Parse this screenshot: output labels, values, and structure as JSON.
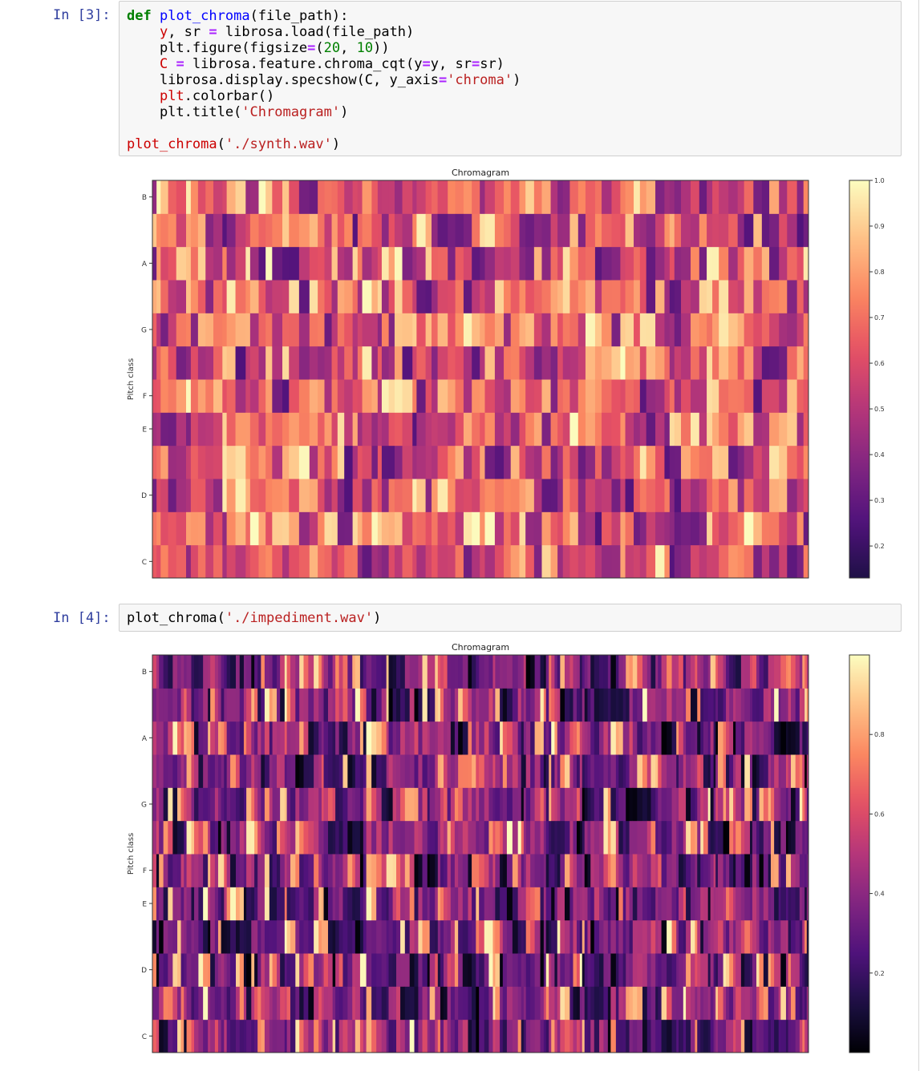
{
  "cells": [
    {
      "prompt": "In [3]:",
      "code_lines": [
        [
          {
            "t": "def",
            "c": "kw"
          },
          {
            "t": " ",
            "c": "nm"
          },
          {
            "t": "plot_chroma",
            "c": "fn"
          },
          {
            "t": "(file_path):",
            "c": "nm"
          }
        ],
        [
          {
            "t": "    ",
            "c": "nm"
          },
          {
            "t": "y",
            "c": "red"
          },
          {
            "t": ", sr ",
            "c": "nm"
          },
          {
            "t": "=",
            "c": "op"
          },
          {
            "t": " librosa.load(file_path)",
            "c": "nm"
          }
        ],
        [
          {
            "t": "    plt.figure(figsize",
            "c": "nm"
          },
          {
            "t": "=",
            "c": "op"
          },
          {
            "t": "(",
            "c": "nm"
          },
          {
            "t": "20",
            "c": "num"
          },
          {
            "t": ", ",
            "c": "nm"
          },
          {
            "t": "10",
            "c": "num"
          },
          {
            "t": "))",
            "c": "nm"
          }
        ],
        [
          {
            "t": "    ",
            "c": "nm"
          },
          {
            "t": "C",
            "c": "red"
          },
          {
            "t": " ",
            "c": "nm"
          },
          {
            "t": "=",
            "c": "op"
          },
          {
            "t": " librosa.feature.chroma_cqt(y",
            "c": "nm"
          },
          {
            "t": "=",
            "c": "op"
          },
          {
            "t": "y, sr",
            "c": "nm"
          },
          {
            "t": "=",
            "c": "op"
          },
          {
            "t": "sr)",
            "c": "nm"
          }
        ],
        [
          {
            "t": "    librosa.display.specshow(C, y_axis",
            "c": "nm"
          },
          {
            "t": "=",
            "c": "op"
          },
          {
            "t": "'chroma'",
            "c": "str"
          },
          {
            "t": ")",
            "c": "nm"
          }
        ],
        [
          {
            "t": "    ",
            "c": "nm"
          },
          {
            "t": "plt",
            "c": "red"
          },
          {
            "t": ".colorbar()",
            "c": "nm"
          }
        ],
        [
          {
            "t": "    plt.title(",
            "c": "nm"
          },
          {
            "t": "'Chromagram'",
            "c": "str"
          },
          {
            "t": ")",
            "c": "nm"
          }
        ],
        [
          {
            "t": "",
            "c": "nm"
          }
        ],
        [
          {
            "t": "plot_chroma",
            "c": "red"
          },
          {
            "t": "(",
            "c": "nm"
          },
          {
            "t": "'./synth.wav'",
            "c": "str"
          },
          {
            "t": ")",
            "c": "nm"
          }
        ]
      ],
      "chart_data": {
        "type": "heatmap",
        "title": "Chromagram",
        "ylabel": "Pitch class",
        "yticks": [
          "C",
          "D",
          "E",
          "F",
          "G",
          "A",
          "B"
        ],
        "rows": 12,
        "colorbar_ticks": [
          "0.2",
          "0.3",
          "0.4",
          "0.5",
          "0.6",
          "0.7",
          "0.8",
          "0.9",
          "1.0"
        ],
        "colorbar_range": [
          0.13,
          1.0
        ],
        "colormap": "magma"
      }
    },
    {
      "prompt": "In [4]:",
      "code_lines": [
        [
          {
            "t": "plot_chroma(",
            "c": "nm"
          },
          {
            "t": "'./impediment.wav'",
            "c": "str"
          },
          {
            "t": ")",
            "c": "nm"
          }
        ]
      ],
      "chart_data": {
        "type": "heatmap",
        "title": "Chromagram",
        "ylabel": "Pitch class",
        "yticks": [
          "C",
          "D",
          "E",
          "F",
          "G",
          "A",
          "B"
        ],
        "rows": 12,
        "colorbar_ticks": [
          "0.2",
          "0.4",
          "0.6",
          "0.8"
        ],
        "colorbar_range": [
          0.0,
          1.0
        ],
        "colormap": "magma"
      }
    }
  ]
}
